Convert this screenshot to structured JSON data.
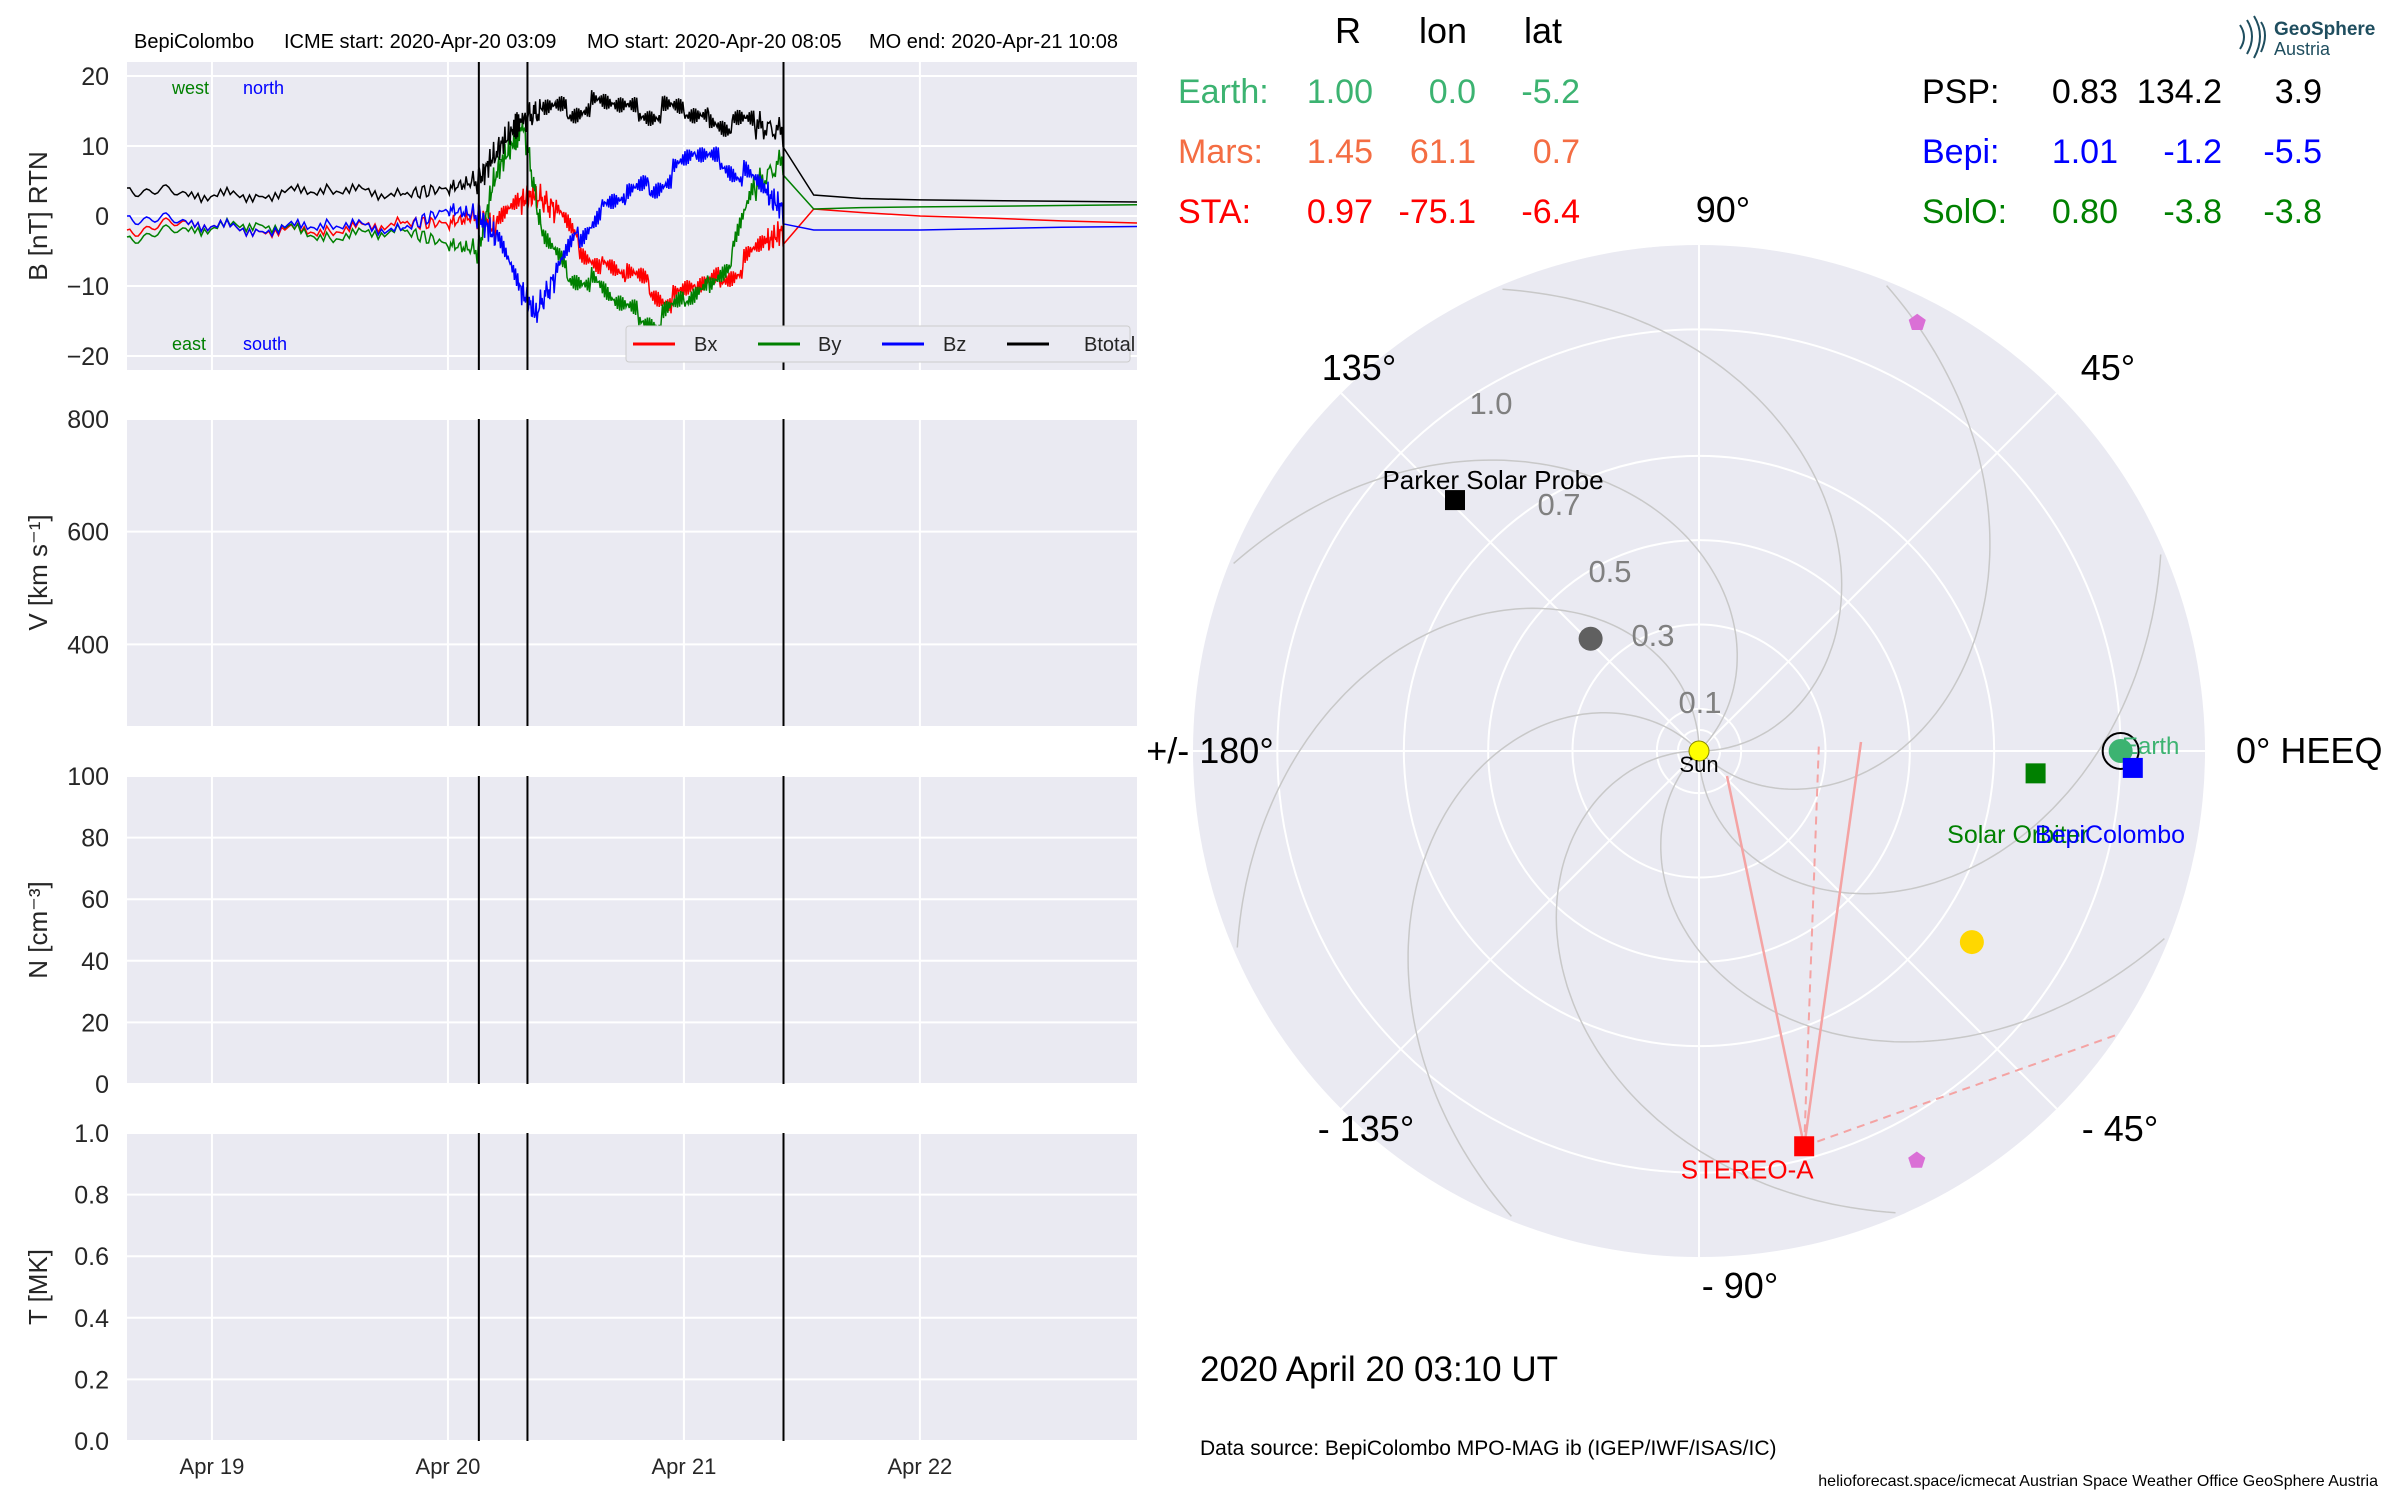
{
  "header": {
    "spacecraft": "BepiColombo",
    "icme_start": "ICME start: 2020-Apr-20 03:09",
    "mo_start": "MO start: 2020-Apr-20 08:05",
    "mo_end": "MO end: 2020-Apr-21 10:08"
  },
  "logo": {
    "line1": "GeoSphere",
    "line2": "Austria"
  },
  "positions_header": {
    "r": "R",
    "lon": "lon",
    "lat": "lat"
  },
  "positions_left": [
    {
      "name": "Earth:",
      "r": "1.00",
      "lon": "0.0",
      "lat": "-5.2",
      "color": "#3cb371"
    },
    {
      "name": "Mars:",
      "r": "1.45",
      "lon": "61.1",
      "lat": "0.7",
      "color": "#f46d43"
    },
    {
      "name": "STA:",
      "r": "0.97",
      "lon": "-75.1",
      "lat": "-6.4",
      "color": "#ff0000"
    }
  ],
  "positions_right": [
    {
      "name": "PSP:",
      "r": "0.83",
      "lon": "134.2",
      "lat": "3.9",
      "color": "#000000"
    },
    {
      "name": "Bepi:",
      "r": "1.01",
      "lon": "-1.2",
      "lat": "-5.5",
      "color": "#0000ff"
    },
    {
      "name": "SolO:",
      "r": "0.80",
      "lon": "-3.8",
      "lat": "-3.8",
      "color": "#008000"
    }
  ],
  "timestamp": "2020 April 20  03:10 UT",
  "data_source": "Data source: BepiColombo MPO-MAG ib (IGEP/IWF/ISAS/IC)",
  "footer": "helioforecast.space/icmecat   Austrian Space Weather Office   GeoSphere Austria",
  "chart_data": [
    {
      "type": "line",
      "ylabel": "B [nT] RTN",
      "ylim": [
        -22,
        22
      ],
      "yticks": [
        "20",
        "10",
        "0",
        "−10",
        "−20"
      ],
      "ytick_values": [
        20,
        10,
        0,
        -10,
        -20
      ],
      "xlim_days": [
        18.64,
        22.92
      ],
      "x_tick_labels": [
        "Apr 19",
        "Apr 20",
        "Apr 21",
        "Apr 22"
      ],
      "x_tick_values": [
        19,
        20,
        21,
        22
      ],
      "event_lines_days": [
        20.131,
        20.337,
        21.422
      ],
      "annotations": {
        "west": "west",
        "north": "north",
        "east": "east",
        "south": "south"
      },
      "legend": [
        "Bx",
        "By",
        "Bz",
        "Btotal"
      ],
      "legend_placement": "lower-right",
      "series": [
        {
          "name": "Bx",
          "color": "#ff0000",
          "x": [
            18.64,
            18.9,
            19.2,
            19.5,
            19.8,
            20.0,
            20.13,
            20.2,
            20.3,
            20.37,
            20.45,
            20.55,
            20.65,
            20.75,
            20.85,
            20.95,
            21.05,
            21.15,
            21.25,
            21.35,
            21.42,
            21.55,
            21.75,
            22.0,
            22.3,
            22.6,
            22.92
          ],
          "y": [
            -2,
            -1,
            -2,
            -2,
            -1,
            -1,
            0,
            -2,
            2,
            3,
            1,
            -4,
            -7,
            -8,
            -10,
            -12,
            -10,
            -9,
            -7,
            -4,
            -2,
            1,
            0.5,
            0,
            -0.3,
            -0.7,
            -1
          ]
        },
        {
          "name": "By",
          "color": "#008000",
          "x": [
            18.64,
            18.9,
            19.2,
            19.5,
            19.8,
            20.0,
            20.13,
            20.2,
            20.27,
            20.32,
            20.4,
            20.5,
            20.6,
            20.7,
            20.8,
            20.9,
            21.0,
            21.1,
            21.2,
            21.3,
            21.42,
            21.55,
            21.75,
            22.0,
            22.3,
            22.6,
            22.92
          ],
          "y": [
            -3,
            -2,
            -1,
            -3,
            -2,
            -4,
            -5,
            6,
            10,
            13,
            -3,
            -8,
            -9,
            -12,
            -14,
            -15,
            -12,
            -10,
            -6,
            4,
            8,
            1,
            1.2,
            1.3,
            1.4,
            1.5,
            1.6
          ]
        },
        {
          "name": "Bz",
          "color": "#0000ff",
          "x": [
            18.64,
            18.9,
            19.2,
            19.5,
            19.8,
            20.0,
            20.13,
            20.2,
            20.3,
            20.37,
            20.45,
            20.55,
            20.65,
            20.75,
            20.85,
            20.95,
            21.05,
            21.15,
            21.25,
            21.35,
            21.42,
            21.55,
            21.75,
            22.0,
            22.3,
            22.6,
            22.92
          ],
          "y": [
            0,
            -1,
            -2,
            -1,
            -2,
            1,
            0,
            -3,
            -10,
            -14,
            -9,
            -3,
            1,
            3,
            4,
            6,
            9,
            8,
            6,
            3,
            1,
            -2,
            -2,
            -2,
            -1.8,
            -1.6,
            -1.5
          ]
        },
        {
          "name": "Btotal",
          "color": "#000000",
          "x": [
            18.64,
            18.9,
            19.2,
            19.5,
            19.8,
            20.0,
            20.13,
            20.2,
            20.27,
            20.32,
            20.4,
            20.5,
            20.6,
            20.7,
            20.8,
            20.9,
            21.0,
            21.1,
            21.2,
            21.3,
            21.42,
            21.55,
            21.75,
            22.0,
            22.3,
            22.6,
            22.92
          ],
          "y": [
            4,
            3,
            3,
            4,
            3,
            4,
            5,
            9,
            12,
            14,
            15,
            15,
            16,
            16,
            15,
            15,
            15,
            14,
            13,
            13,
            12,
            3,
            2.5,
            2.3,
            2.2,
            2.1,
            2
          ]
        }
      ]
    },
    {
      "type": "line",
      "ylabel": "V [km s⁻¹]",
      "ylim": [
        255,
        800
      ],
      "yticks": [
        "800",
        "600",
        "400"
      ],
      "ytick_values": [
        800,
        600,
        400
      ],
      "series": []
    },
    {
      "type": "line",
      "ylabel": "N [cm⁻³]",
      "ylim": [
        0,
        100
      ],
      "yticks": [
        "100",
        "80",
        "60",
        "40",
        "20",
        "0"
      ],
      "ytick_values": [
        100,
        80,
        60,
        40,
        20,
        0
      ],
      "series": []
    },
    {
      "type": "line",
      "ylabel": "T [MK]",
      "ylim": [
        0,
        1
      ],
      "yticks": [
        "1.0",
        "0.8",
        "0.6",
        "0.4",
        "0.2",
        "0.0"
      ],
      "ytick_values": [
        1.0,
        0.8,
        0.6,
        0.4,
        0.2,
        0.0
      ],
      "series": []
    },
    {
      "type": "polar",
      "frame": "HEEQ",
      "rmax": 1.2,
      "r_ticks": [
        "1.0",
        "0.7",
        "0.5",
        "0.3",
        "0.1"
      ],
      "r_tick_values": [
        1.0,
        0.7,
        0.5,
        0.3,
        0.1
      ],
      "angle_labels": [
        {
          "deg": 0,
          "label": "0° HEEQ"
        },
        {
          "deg": 45,
          "label": "45°"
        },
        {
          "deg": 90,
          "label": "90°"
        },
        {
          "deg": 135,
          "label": "135°"
        },
        {
          "deg": 180,
          "label": "+/- 180°"
        },
        {
          "deg": -135,
          "label": "- 135°"
        },
        {
          "deg": -90,
          "label": "- 90°"
        },
        {
          "deg": -45,
          "label": "- 45°"
        }
      ],
      "bodies": [
        {
          "name": "Sun",
          "r": 0.0,
          "lon": 0.0,
          "color": "#ffff00",
          "marker": "circle"
        },
        {
          "name": "Earth",
          "r": 1.0,
          "lon": 0.0,
          "color": "#3cb371",
          "marker": "circle"
        },
        {
          "name": "BepiColombo",
          "r": 1.01,
          "lon": -1.2,
          "color": "#0000ff",
          "marker": "square"
        },
        {
          "name": "Solar Orbiter",
          "r": 0.8,
          "lon": -3.8,
          "color": "#008000",
          "marker": "square"
        },
        {
          "name": "STEREO-A",
          "r": 0.97,
          "lon": -75.1,
          "color": "#ff0000",
          "marker": "square"
        },
        {
          "name": "Parker Solar Probe",
          "r": 0.83,
          "lon": 134.2,
          "color": "#000000",
          "marker": "square"
        },
        {
          "name": "",
          "r": 0.37,
          "lon": 134,
          "color": "#606060",
          "marker": "circle"
        },
        {
          "name": "",
          "r": 0.79,
          "lon": -35,
          "color": "#ffd700",
          "marker": "circle"
        },
        {
          "name": "",
          "r": 1.14,
          "lon": 63,
          "color": "#da70d6",
          "marker": "pentagon"
        },
        {
          "name": "",
          "r": 1.1,
          "lon": -62,
          "color": "#da70d6",
          "marker": "pentagon"
        }
      ]
    }
  ]
}
